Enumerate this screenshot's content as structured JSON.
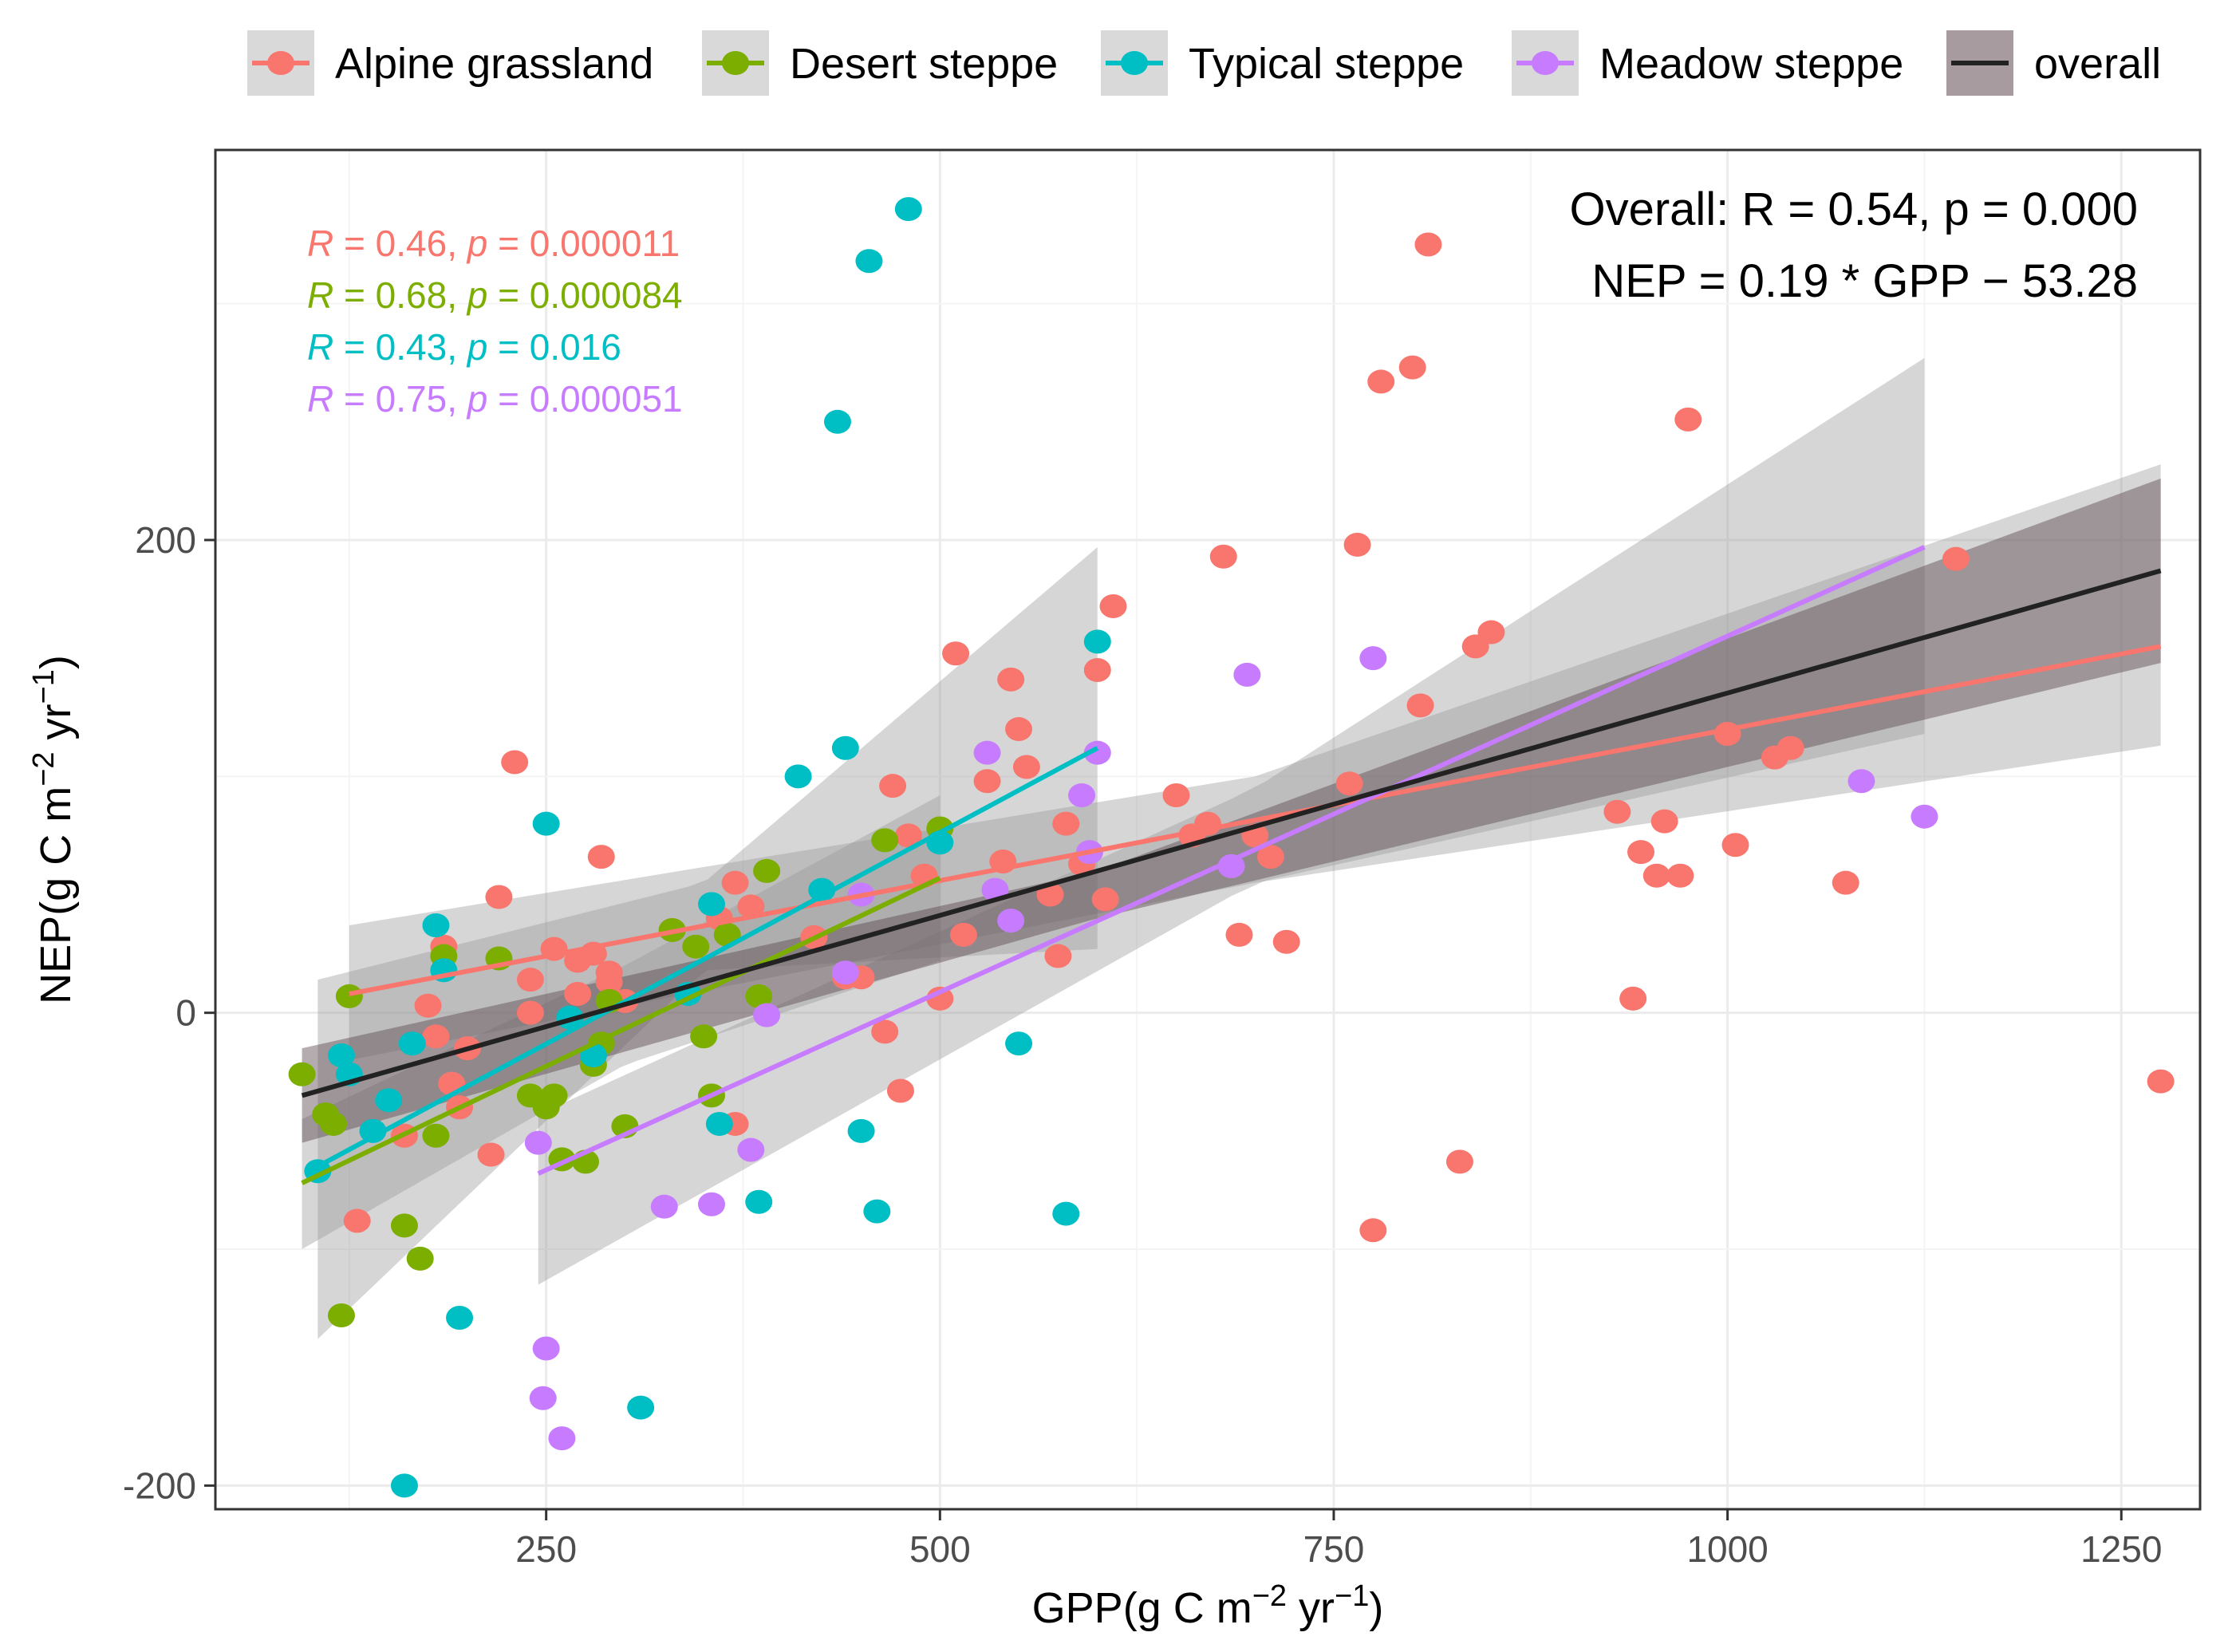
{
  "chart_data": {
    "type": "scatter",
    "xlabel_main": "GPP(g C m",
    "xlabel_sup1": "−2",
    "xlabel_mid": " yr",
    "xlabel_sup2": "−1",
    "xlabel_end": ")",
    "ylabel_main": "NEP(g C m",
    "ylabel_sup1": "−2",
    "ylabel_mid": " yr",
    "ylabel_sup2": "−1",
    "ylabel_end": ")",
    "xlim": [
      40,
      1300
    ],
    "ylim": [
      -210,
      365
    ],
    "x_ticks": [
      250,
      500,
      750,
      1000,
      1250
    ],
    "x_tick_labels": [
      "250",
      "500",
      "750",
      "1000",
      "1250"
    ],
    "y_ticks": [
      -200,
      0,
      200
    ],
    "y_tick_labels": [
      "-200",
      "0",
      "200"
    ],
    "grid": true,
    "legend_position": "top",
    "overall_stats": {
      "line1": "Overall: R = 0.54, p = 0.000",
      "line2": "NEP = 0.19 * GPP − 53.28"
    },
    "series": [
      {
        "name": "Alpine grassland",
        "color": "#F8766D",
        "stat": {
          "r_label": "R",
          "r_text": " = 0.46, ",
          "p_label": "p",
          "p_text": " = 0.000011"
        },
        "fit": {
          "x": [
            125,
            1275
          ],
          "y": [
            8,
            155
          ]
        },
        "band": {
          "x": [
            125,
            700,
            1275
          ],
          "upper": [
            37,
            100,
            232
          ],
          "lower": [
            -20,
            55,
            113
          ]
        },
        "points": [
          [
            230,
            106
          ],
          [
            220,
            49
          ],
          [
            285,
            66
          ],
          [
            240,
            14
          ],
          [
            255,
            27
          ],
          [
            270,
            22
          ],
          [
            280,
            25
          ],
          [
            290,
            17
          ],
          [
            300,
            5
          ],
          [
            175,
            3
          ],
          [
            185,
            28
          ],
          [
            180,
            -10
          ],
          [
            190,
            -30
          ],
          [
            195,
            -40
          ],
          [
            200,
            -15
          ],
          [
            215,
            -60
          ],
          [
            130,
            -88
          ],
          [
            160,
            -52
          ],
          [
            240,
            0
          ],
          [
            270,
            8
          ],
          [
            290,
            13
          ],
          [
            330,
            35
          ],
          [
            360,
            40
          ],
          [
            370,
            55
          ],
          [
            380,
            45
          ],
          [
            370,
            -47
          ],
          [
            420,
            32
          ],
          [
            440,
            15
          ],
          [
            450,
            15
          ],
          [
            465,
            -8
          ],
          [
            470,
            96
          ],
          [
            475,
            -33
          ],
          [
            480,
            75
          ],
          [
            490,
            58
          ],
          [
            500,
            6
          ],
          [
            510,
            152
          ],
          [
            515,
            33
          ],
          [
            530,
            98
          ],
          [
            540,
            64
          ],
          [
            545,
            141
          ],
          [
            550,
            120
          ],
          [
            555,
            104
          ],
          [
            570,
            50
          ],
          [
            575,
            24
          ],
          [
            580,
            80
          ],
          [
            590,
            63
          ],
          [
            600,
            145
          ],
          [
            605,
            48
          ],
          [
            610,
            172
          ],
          [
            650,
            92
          ],
          [
            660,
            75
          ],
          [
            670,
            80
          ],
          [
            680,
            193
          ],
          [
            690,
            33
          ],
          [
            700,
            75
          ],
          [
            710,
            66
          ],
          [
            720,
            30
          ],
          [
            760,
            97
          ],
          [
            765,
            198
          ],
          [
            775,
            -92
          ],
          [
            780,
            267
          ],
          [
            800,
            273
          ],
          [
            805,
            130
          ],
          [
            810,
            325
          ],
          [
            830,
            -63
          ],
          [
            840,
            155
          ],
          [
            850,
            161
          ],
          [
            930,
            85
          ],
          [
            940,
            6
          ],
          [
            945,
            68
          ],
          [
            955,
            58
          ],
          [
            960,
            81
          ],
          [
            970,
            58
          ],
          [
            975,
            251
          ],
          [
            1000,
            118
          ],
          [
            1005,
            71
          ],
          [
            1030,
            108
          ],
          [
            1040,
            112
          ],
          [
            1075,
            55
          ],
          [
            1145,
            192
          ],
          [
            1275,
            -29
          ]
        ]
      },
      {
        "name": "Desert steppe",
        "color": "#7CAE00",
        "stat": {
          "r_label": "R",
          "r_text": " = 0.68, ",
          "p_label": "p",
          "p_text": " = 0.000084"
        },
        "fit": {
          "x": [
            95,
            500
          ],
          "y": [
            -72,
            57
          ]
        },
        "band": {
          "x": [
            95,
            300,
            500
          ],
          "upper": [
            -45,
            20,
            92
          ],
          "lower": [
            -100,
            -22,
            22
          ]
        },
        "points": [
          [
            95,
            -26
          ],
          [
            110,
            -43
          ],
          [
            115,
            -47
          ],
          [
            120,
            -128
          ],
          [
            125,
            7
          ],
          [
            160,
            -90
          ],
          [
            170,
            -104
          ],
          [
            180,
            -52
          ],
          [
            185,
            24
          ],
          [
            220,
            23
          ],
          [
            240,
            -35
          ],
          [
            250,
            -40
          ],
          [
            255,
            -35
          ],
          [
            260,
            -62
          ],
          [
            275,
            -63
          ],
          [
            280,
            -22
          ],
          [
            285,
            -13
          ],
          [
            290,
            5
          ],
          [
            300,
            -48
          ],
          [
            330,
            35
          ],
          [
            345,
            28
          ],
          [
            350,
            -10
          ],
          [
            355,
            -35
          ],
          [
            365,
            33
          ],
          [
            385,
            7
          ],
          [
            390,
            60
          ],
          [
            465,
            73
          ],
          [
            500,
            78
          ]
        ]
      },
      {
        "name": "Typical steppe",
        "color": "#00BFC4",
        "stat": {
          "r_label": "R",
          "r_text": " = 0.43, ",
          "p_label": "p",
          "p_text": " = 0.016"
        },
        "fit": {
          "x": [
            105,
            600
          ],
          "y": [
            -65,
            112
          ]
        },
        "band": {
          "x": [
            105,
            350,
            600
          ],
          "upper": [
            14,
            55,
            197
          ],
          "lower": [
            -138,
            18,
            27
          ]
        },
        "points": [
          [
            105,
            -67
          ],
          [
            120,
            -18
          ],
          [
            125,
            -26
          ],
          [
            140,
            -50
          ],
          [
            150,
            -37
          ],
          [
            160,
            -200
          ],
          [
            165,
            -13
          ],
          [
            180,
            37
          ],
          [
            185,
            18
          ],
          [
            195,
            -129
          ],
          [
            250,
            80
          ],
          [
            265,
            -2
          ],
          [
            280,
            -18
          ],
          [
            310,
            -167
          ],
          [
            340,
            8
          ],
          [
            355,
            46
          ],
          [
            360,
            -47
          ],
          [
            385,
            -80
          ],
          [
            410,
            100
          ],
          [
            425,
            52
          ],
          [
            435,
            250
          ],
          [
            440,
            112
          ],
          [
            450,
            -50
          ],
          [
            455,
            318
          ],
          [
            460,
            -84
          ],
          [
            480,
            340
          ],
          [
            500,
            72
          ],
          [
            550,
            -13
          ],
          [
            580,
            -85
          ],
          [
            600,
            157
          ]
        ]
      },
      {
        "name": "Meadow steppe",
        "color": "#C77CFF",
        "stat": {
          "r_label": "R",
          "r_text": " = 0.75, ",
          "p_label": "p",
          "p_text": " = 0.000051"
        },
        "fit": {
          "x": [
            245,
            1125
          ],
          "y": [
            -68,
            197
          ]
        },
        "band": {
          "x": [
            245,
            700,
            1125
          ],
          "upper": [
            -43,
            95,
            277
          ],
          "lower": [
            -115,
            55,
            118
          ]
        },
        "points": [
          [
            245,
            -55
          ],
          [
            250,
            -142
          ],
          [
            248,
            -163
          ],
          [
            260,
            -180
          ],
          [
            325,
            -82
          ],
          [
            355,
            -81
          ],
          [
            380,
            -58
          ],
          [
            390,
            -1
          ],
          [
            440,
            17
          ],
          [
            450,
            50
          ],
          [
            530,
            110
          ],
          [
            535,
            52
          ],
          [
            545,
            39
          ],
          [
            590,
            92
          ],
          [
            595,
            68
          ],
          [
            600,
            110
          ],
          [
            685,
            62
          ],
          [
            695,
            143
          ],
          [
            775,
            150
          ],
          [
            1085,
            98
          ],
          [
            1125,
            83
          ]
        ]
      }
    ],
    "overall": {
      "name": "overall",
      "color": "#222222",
      "fit": {
        "x": [
          95,
          1275
        ],
        "y": [
          -35,
          187
        ]
      },
      "band": {
        "x": [
          95,
          600,
          1275
        ],
        "upper": [
          -15,
          60,
          226
        ],
        "lower": [
          -55,
          40,
          148
        ]
      }
    }
  }
}
